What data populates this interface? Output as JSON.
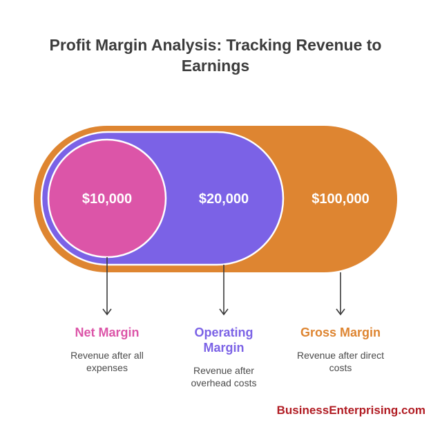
{
  "title": "Profit Margin Analysis: Tracking Revenue to Earnings",
  "layers": [
    {
      "value": "$100,000",
      "label": "Gross Margin",
      "description": "Revenue after direct costs",
      "color": "#de8531"
    },
    {
      "value": "$20,000",
      "label": "Operating Margin",
      "description": "Revenue after overhead costs",
      "color": "#7b62e6"
    },
    {
      "value": "$10,000",
      "label": "Net Margin",
      "description": "Revenue after all expenses",
      "color": "#dc55a8"
    }
  ],
  "brand": "BusinessEnterprising.com"
}
